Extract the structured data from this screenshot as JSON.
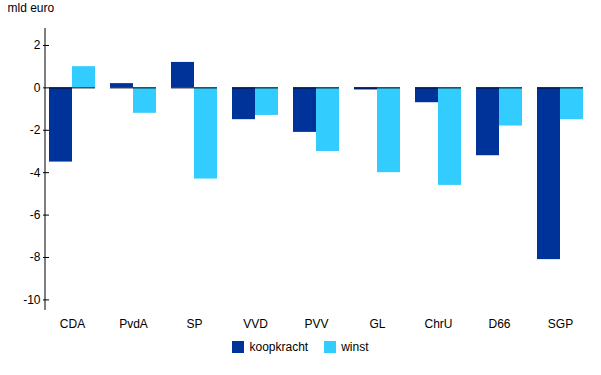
{
  "chart_data": {
    "type": "bar",
    "ylabel": "mld euro",
    "categories": [
      "CDA",
      "PvdA",
      "SP",
      "VVD",
      "PVV",
      "GL",
      "ChrU",
      "D66",
      "SGP"
    ],
    "series": [
      {
        "name": "koopkracht",
        "color": "#003399",
        "values": [
          -3.5,
          0.2,
          1.2,
          -1.5,
          -2.1,
          -0.1,
          -0.7,
          -3.2,
          -8.1
        ]
      },
      {
        "name": "winst",
        "color": "#33CCFF",
        "values": [
          1.0,
          -1.2,
          -4.3,
          -1.3,
          -3.0,
          -4.0,
          -4.6,
          -1.8,
          -1.5
        ]
      }
    ],
    "ylim": [
      -10.5,
      2.8
    ],
    "yticks": [
      -10,
      -8,
      -6,
      -4,
      -2,
      0,
      2
    ],
    "grid": false,
    "legend": "bottom"
  }
}
